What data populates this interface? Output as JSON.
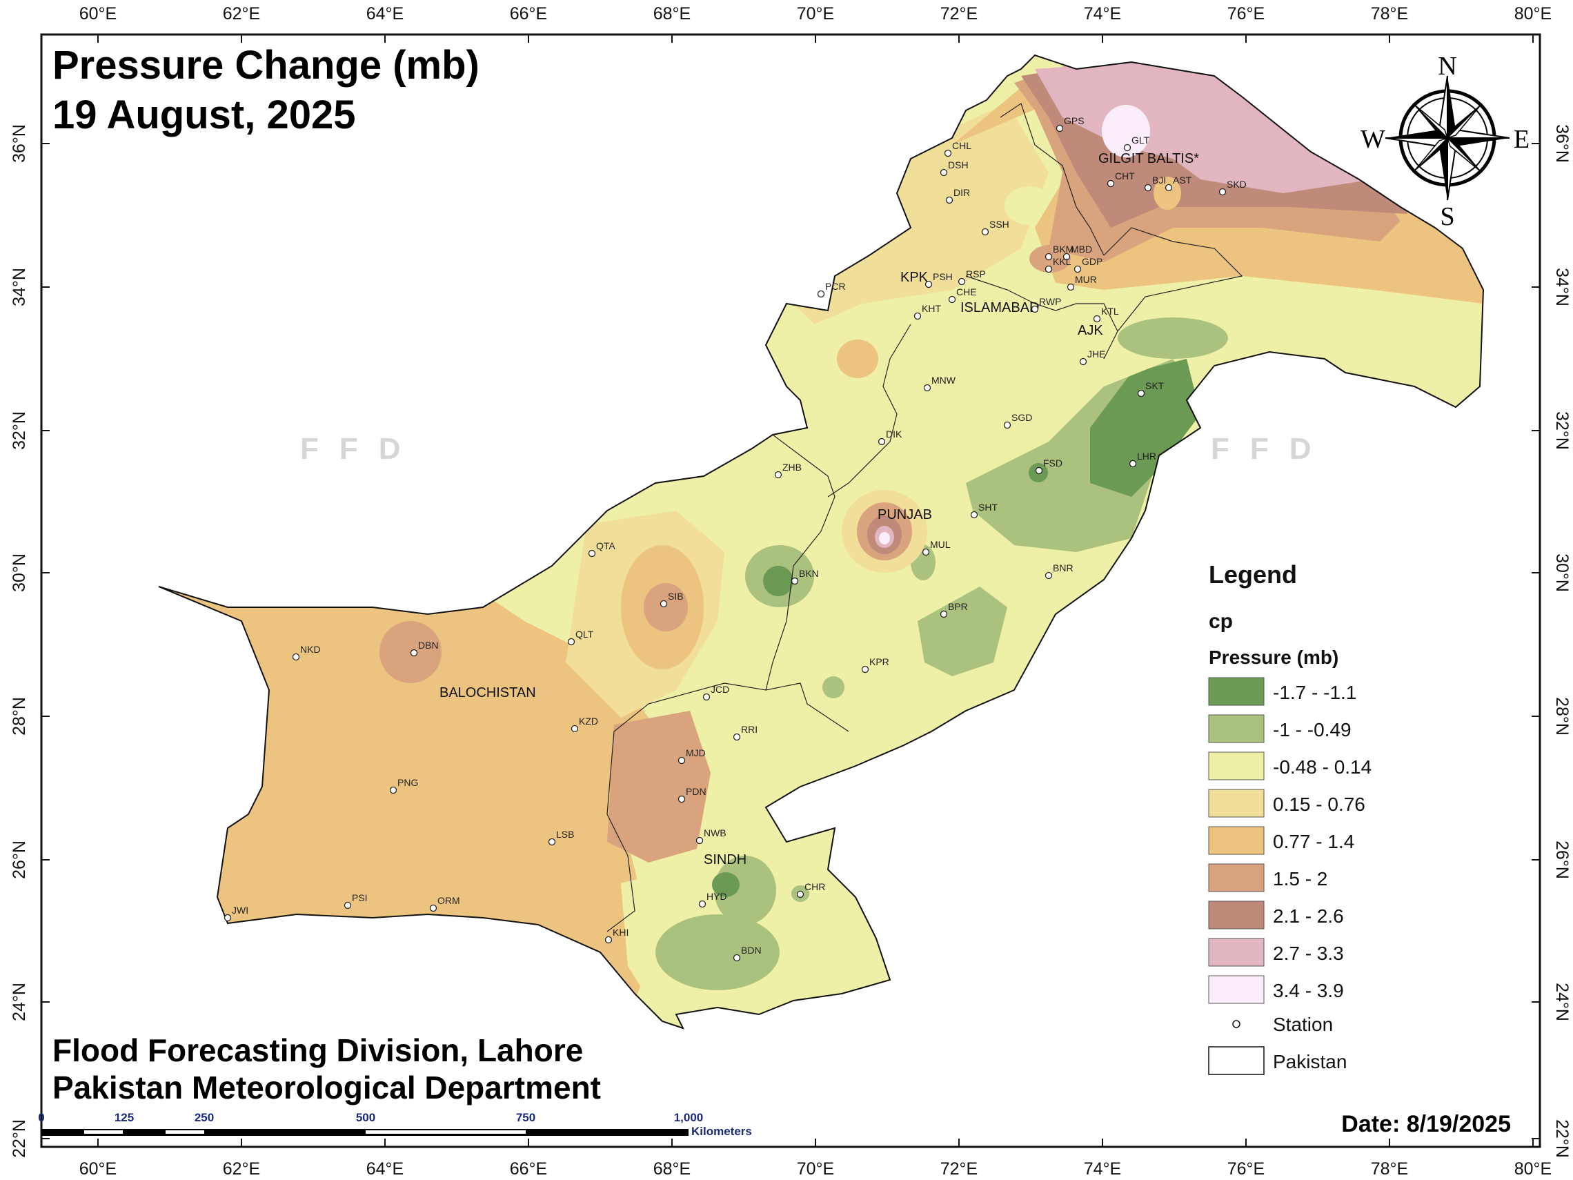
{
  "title": {
    "line1": "Pressure Change (mb)",
    "line2": "19 August, 2025"
  },
  "credits": {
    "line1": "Flood Forecasting Division, Lahore",
    "line2": "Pakistan Meteorological Department"
  },
  "date_label": "Date: 8/19/2025",
  "watermark": "FFD",
  "axes": {
    "lon_labels": [
      "60°E",
      "62°E",
      "64°E",
      "66°E",
      "68°E",
      "70°E",
      "72°E",
      "74°E",
      "76°E",
      "78°E",
      "80°E"
    ],
    "lat_labels": [
      "22°N",
      "24°N",
      "26°N",
      "28°N",
      "30°N",
      "32°N",
      "34°N",
      "36°N"
    ]
  },
  "compass": {
    "n": "N",
    "s": "S",
    "e": "E",
    "w": "W"
  },
  "legend": {
    "heading": "Legend",
    "layer": "cp",
    "field": "Pressure (mb)",
    "classes": [
      {
        "label": "-1.7 - -1.1",
        "color": "#6b9a55"
      },
      {
        "label": "-1 - -0.49",
        "color": "#aac27d"
      },
      {
        "label": "-0.48 - 0.14",
        "color": "#eff0a8"
      },
      {
        "label": "0.15 - 0.76",
        "color": "#f1de98"
      },
      {
        "label": "0.77 - 1.4",
        "color": "#edc47f"
      },
      {
        "label": "1.5 - 2",
        "color": "#d9a47d"
      },
      {
        "label": "2.1 - 2.6",
        "color": "#bf8a7a"
      },
      {
        "label": "2.7 - 3.3",
        "color": "#e1b6c1"
      },
      {
        "label": "3.4 - 3.9",
        "color": "#fbeefa"
      }
    ],
    "station_label": "Station",
    "boundary_label": "Pakistan"
  },
  "scale_bar": {
    "labels": [
      "0",
      "125",
      "250",
      "500",
      "750",
      "1,000"
    ],
    "unit": "Kilometers"
  },
  "regions": [
    "GILGIT BALTIS*",
    "KPK",
    "ISLAMABAD",
    "AJK",
    "PUNJAB",
    "BALOCHISTAN",
    "SINDH"
  ],
  "stations": [
    "GPS",
    "GLT",
    "CHL",
    "DSH",
    "CHT",
    "BJI",
    "AST",
    "SKD",
    "DIR",
    "SSH",
    "BKM",
    "MBD",
    "KKL",
    "GDP",
    "MUR",
    "PCR",
    "PSH",
    "RSP",
    "CHE",
    "KHT",
    "RWP",
    "KTL",
    "JHE",
    "MNW",
    "SKT",
    "SGD",
    "DIK",
    "LHR",
    "FSD",
    "ZHB",
    "SHT",
    "QTA",
    "MUL",
    "BKN",
    "BNR",
    "SIB",
    "BPR",
    "QLT",
    "NKD",
    "DBN",
    "KPR",
    "JCD",
    "KZD",
    "RRI",
    "MJD",
    "PNG",
    "PDN",
    "LSB",
    "NWB",
    "HYD",
    "CHR",
    "PSI",
    "JWI",
    "ORM",
    "KHI",
    "BDN"
  ]
}
